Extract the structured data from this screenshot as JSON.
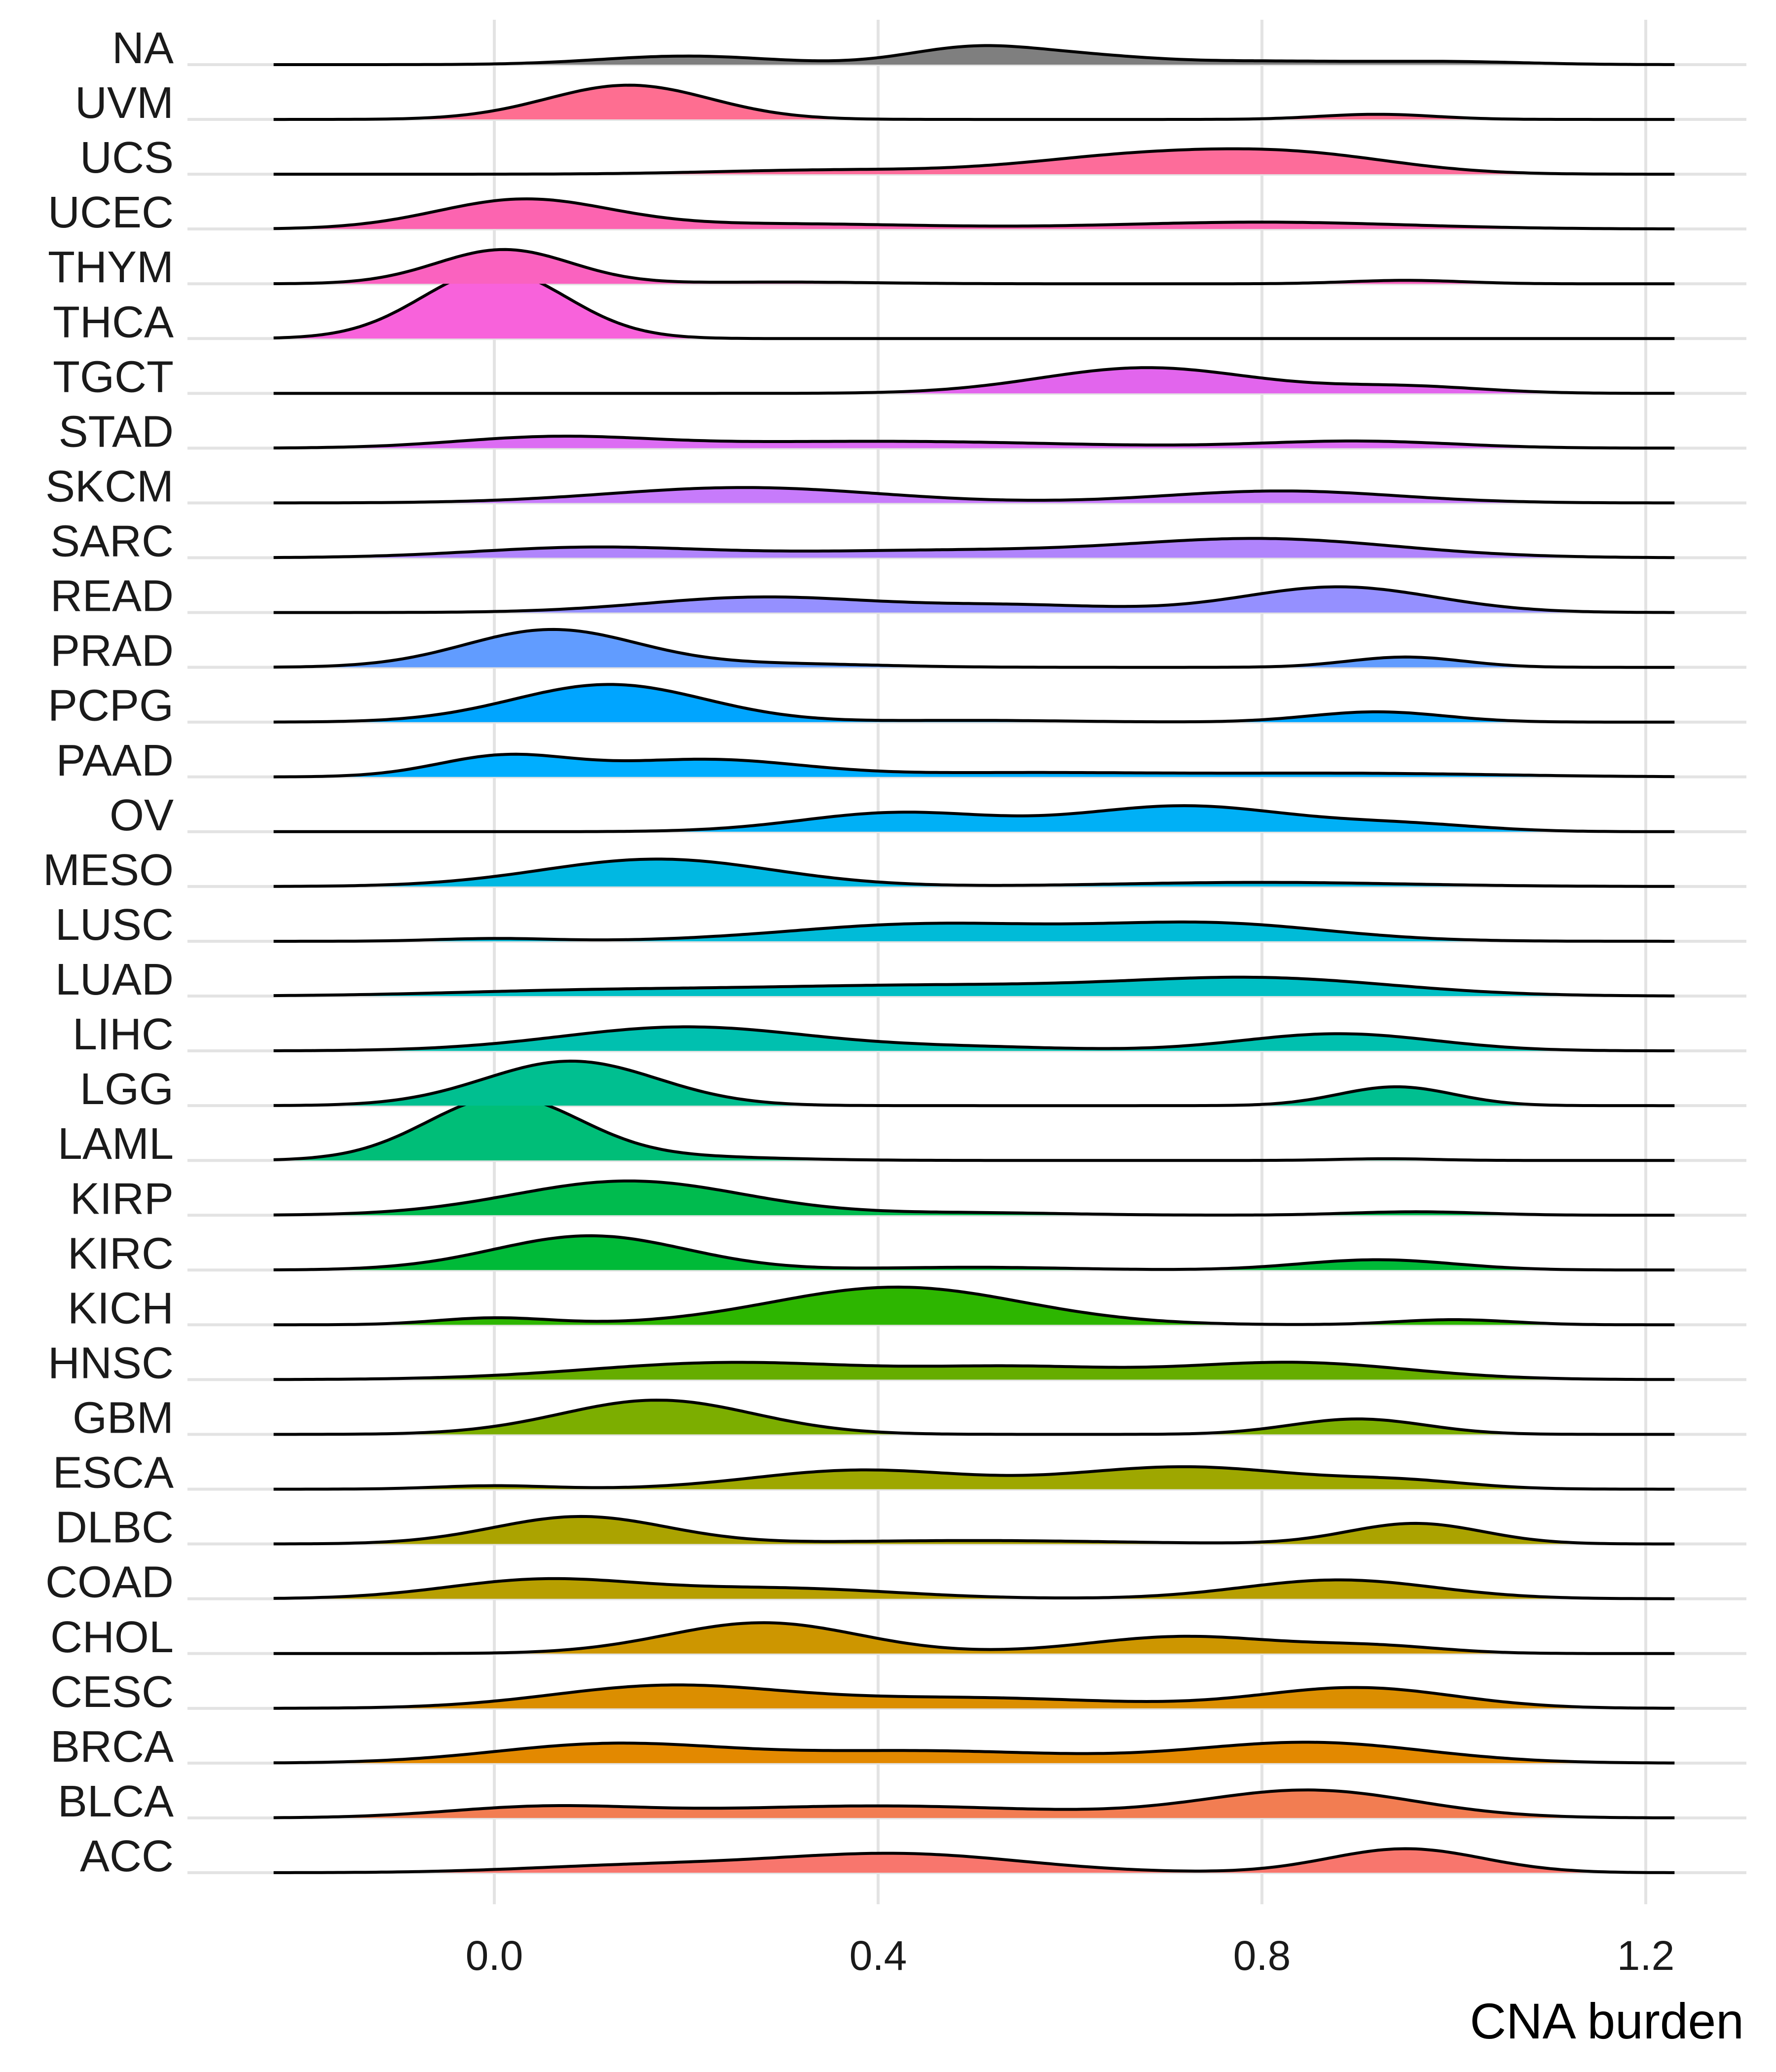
{
  "chart_data": {
    "type": "ridgeline",
    "title": "",
    "xlabel": "CNA burden",
    "ylabel": "",
    "xlim": [
      -0.23,
      1.23
    ],
    "x_ticks": [
      0.0,
      0.4,
      0.8,
      1.2
    ],
    "x_tick_labels": [
      "0.0",
      "0.4",
      "0.8",
      "1.2"
    ],
    "grid": true,
    "legend": "none",
    "series": [
      {
        "name": "NA",
        "color": "#7f7f7f",
        "modes": [
          [
            0.2,
            0.25,
            0.09
          ],
          [
            0.5,
            0.5,
            0.07
          ],
          [
            0.62,
            0.2,
            0.07
          ],
          [
            0.8,
            0.1,
            0.1
          ],
          [
            1.0,
            0.08,
            0.08
          ]
        ]
      },
      {
        "name": "UVM",
        "color": "#fe6e91",
        "modes": [
          [
            0.14,
            1.0,
            0.085
          ],
          [
            0.92,
            0.15,
            0.06
          ]
        ]
      },
      {
        "name": "UCS",
        "color": "#fd6c9a",
        "modes": [
          [
            0.35,
            0.12,
            0.12
          ],
          [
            0.68,
            0.55,
            0.12
          ],
          [
            0.85,
            0.45,
            0.1
          ]
        ]
      },
      {
        "name": "UCEC",
        "color": "#fc64b0",
        "modes": [
          [
            0.03,
            0.85,
            0.09
          ],
          [
            0.3,
            0.15,
            0.15
          ],
          [
            0.8,
            0.2,
            0.15
          ]
        ]
      },
      {
        "name": "THYM",
        "color": "#fa62bf",
        "modes": [
          [
            0.01,
            1.0,
            0.07
          ],
          [
            0.3,
            0.05,
            0.1
          ],
          [
            0.95,
            0.1,
            0.06
          ]
        ]
      },
      {
        "name": "THCA",
        "color": "#f862db",
        "modes": [
          [
            0.0,
            2.0,
            0.075
          ]
        ]
      },
      {
        "name": "TGCT",
        "color": "#e265ed",
        "modes": [
          [
            0.68,
            0.75,
            0.11
          ],
          [
            0.95,
            0.2,
            0.08
          ]
        ]
      },
      {
        "name": "STAD",
        "color": "#dc6cf3",
        "modes": [
          [
            0.06,
            0.3,
            0.1
          ],
          [
            0.4,
            0.2,
            0.2
          ],
          [
            0.9,
            0.2,
            0.1
          ]
        ]
      },
      {
        "name": "SKCM",
        "color": "#c77bfb",
        "modes": [
          [
            0.26,
            0.45,
            0.14
          ],
          [
            0.82,
            0.35,
            0.12
          ]
        ]
      },
      {
        "name": "SARC",
        "color": "#b084fc",
        "modes": [
          [
            0.1,
            0.3,
            0.12
          ],
          [
            0.45,
            0.2,
            0.15
          ],
          [
            0.8,
            0.55,
            0.14
          ]
        ]
      },
      {
        "name": "READ",
        "color": "#9590ff",
        "modes": [
          [
            0.28,
            0.45,
            0.12
          ],
          [
            0.55,
            0.2,
            0.1
          ],
          [
            0.88,
            0.75,
            0.1
          ]
        ]
      },
      {
        "name": "PRAD",
        "color": "#619cff",
        "modes": [
          [
            0.06,
            1.1,
            0.09
          ],
          [
            0.3,
            0.1,
            0.1
          ],
          [
            0.95,
            0.3,
            0.06
          ]
        ]
      },
      {
        "name": "PCPG",
        "color": "#00a5ff",
        "modes": [
          [
            0.12,
            1.1,
            0.1
          ],
          [
            0.5,
            0.05,
            0.1
          ],
          [
            0.92,
            0.3,
            0.07
          ]
        ]
      },
      {
        "name": "PAAD",
        "color": "#00aeff",
        "modes": [
          [
            0.01,
            0.6,
            0.07
          ],
          [
            0.22,
            0.5,
            0.1
          ],
          [
            0.55,
            0.12,
            0.15
          ],
          [
            0.9,
            0.1,
            0.15
          ]
        ]
      },
      {
        "name": "OV",
        "color": "#00b0f6",
        "modes": [
          [
            0.42,
            0.55,
            0.1
          ],
          [
            0.72,
            0.75,
            0.11
          ],
          [
            0.95,
            0.2,
            0.08
          ]
        ]
      },
      {
        "name": "MESO",
        "color": "#00b8e2",
        "modes": [
          [
            0.17,
            0.8,
            0.12
          ],
          [
            0.8,
            0.12,
            0.15
          ]
        ]
      },
      {
        "name": "LUSC",
        "color": "#00bbd8",
        "modes": [
          [
            0.0,
            0.08,
            0.06
          ],
          [
            0.45,
            0.5,
            0.14
          ],
          [
            0.75,
            0.5,
            0.12
          ]
        ]
      },
      {
        "name": "LUAD",
        "color": "#00bfc4",
        "modes": [
          [
            0.1,
            0.15,
            0.15
          ],
          [
            0.45,
            0.3,
            0.18
          ],
          [
            0.8,
            0.5,
            0.14
          ]
        ]
      },
      {
        "name": "LIHC",
        "color": "#00c0af",
        "modes": [
          [
            0.2,
            0.7,
            0.13
          ],
          [
            0.5,
            0.1,
            0.1
          ],
          [
            0.88,
            0.5,
            0.1
          ]
        ]
      },
      {
        "name": "LGG",
        "color": "#00bf90",
        "modes": [
          [
            0.08,
            1.3,
            0.09
          ],
          [
            0.94,
            0.55,
            0.06
          ]
        ]
      },
      {
        "name": "LAML",
        "color": "#00be78",
        "modes": [
          [
            0.01,
            1.85,
            0.08
          ],
          [
            0.2,
            0.1,
            0.1
          ],
          [
            0.93,
            0.05,
            0.05
          ]
        ]
      },
      {
        "name": "KIRP",
        "color": "#00bb4e",
        "modes": [
          [
            0.14,
            1.0,
            0.12
          ],
          [
            0.5,
            0.07,
            0.1
          ],
          [
            0.96,
            0.1,
            0.07
          ]
        ]
      },
      {
        "name": "KIRC",
        "color": "#00ba38",
        "modes": [
          [
            0.1,
            1.0,
            0.1
          ],
          [
            0.5,
            0.08,
            0.1
          ],
          [
            0.92,
            0.3,
            0.08
          ]
        ]
      },
      {
        "name": "KICH",
        "color": "#2db600",
        "modes": [
          [
            0.0,
            0.2,
            0.06
          ],
          [
            0.42,
            1.1,
            0.13
          ],
          [
            1.0,
            0.15,
            0.06
          ]
        ]
      },
      {
        "name": "HNSC",
        "color": "#66ad00",
        "modes": [
          [
            0.25,
            0.5,
            0.15
          ],
          [
            0.55,
            0.3,
            0.1
          ],
          [
            0.83,
            0.5,
            0.12
          ]
        ]
      },
      {
        "name": "GBM",
        "color": "#7cae00",
        "modes": [
          [
            0.17,
            1.0,
            0.1
          ],
          [
            0.9,
            0.45,
            0.07
          ]
        ]
      },
      {
        "name": "ESCA",
        "color": "#9ea700",
        "modes": [
          [
            0.0,
            0.1,
            0.06
          ],
          [
            0.38,
            0.55,
            0.11
          ],
          [
            0.72,
            0.65,
            0.12
          ],
          [
            0.95,
            0.2,
            0.07
          ]
        ]
      },
      {
        "name": "DLBC",
        "color": "#aba300",
        "modes": [
          [
            0.09,
            0.8,
            0.09
          ],
          [
            0.5,
            0.1,
            0.15
          ],
          [
            0.96,
            0.6,
            0.07
          ]
        ]
      },
      {
        "name": "COAD",
        "color": "#b79f00",
        "modes": [
          [
            0.05,
            0.55,
            0.1
          ],
          [
            0.3,
            0.3,
            0.12
          ],
          [
            0.88,
            0.55,
            0.1
          ]
        ]
      },
      {
        "name": "CHOL",
        "color": "#cd9600",
        "modes": [
          [
            0.28,
            0.9,
            0.1
          ],
          [
            0.72,
            0.5,
            0.1
          ],
          [
            0.92,
            0.2,
            0.07
          ]
        ]
      },
      {
        "name": "CESC",
        "color": "#db8e00",
        "modes": [
          [
            0.18,
            0.65,
            0.12
          ],
          [
            0.5,
            0.3,
            0.15
          ],
          [
            0.9,
            0.6,
            0.1
          ]
        ]
      },
      {
        "name": "BRCA",
        "color": "#e38900",
        "modes": [
          [
            0.12,
            0.55,
            0.12
          ],
          [
            0.45,
            0.35,
            0.15
          ],
          [
            0.85,
            0.6,
            0.12
          ]
        ]
      },
      {
        "name": "BLCA",
        "color": "#f27d52",
        "modes": [
          [
            0.05,
            0.3,
            0.1
          ],
          [
            0.4,
            0.35,
            0.18
          ],
          [
            0.85,
            0.8,
            0.11
          ]
        ]
      },
      {
        "name": "ACC",
        "color": "#f8766d",
        "modes": [
          [
            0.15,
            0.2,
            0.12
          ],
          [
            0.42,
            0.55,
            0.13
          ],
          [
            0.95,
            0.7,
            0.08
          ]
        ]
      }
    ]
  }
}
